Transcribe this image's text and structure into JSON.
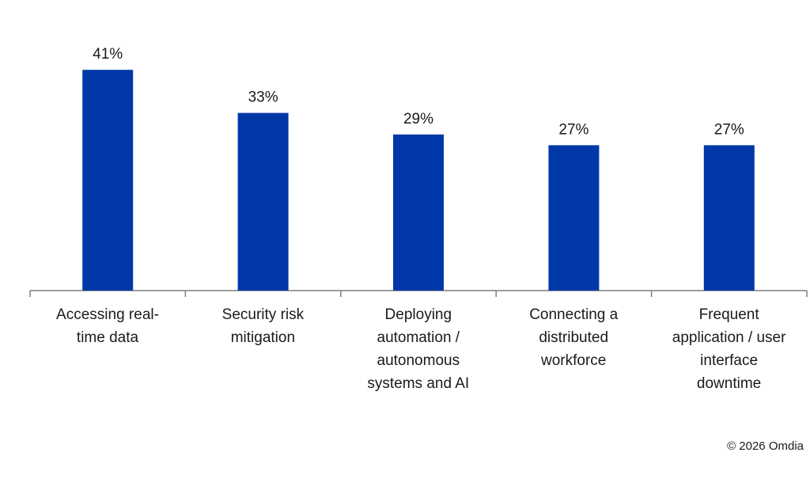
{
  "chart_data": {
    "type": "bar",
    "categories": [
      "Accessing real-\ntime data",
      "Security risk\nmitigation",
      "Deploying\nautomation /\nautonomous\nsystems and AI",
      "Connecting a\ndistributed\nworkforce",
      "Frequent\napplication / user\ninterface\ndowntime"
    ],
    "values": [
      41,
      33,
      29,
      27,
      27
    ],
    "value_labels": [
      "41%",
      "33%",
      "29%",
      "27%",
      "27%"
    ],
    "color": "#0038a8",
    "source": "© 2026 Omdia"
  }
}
